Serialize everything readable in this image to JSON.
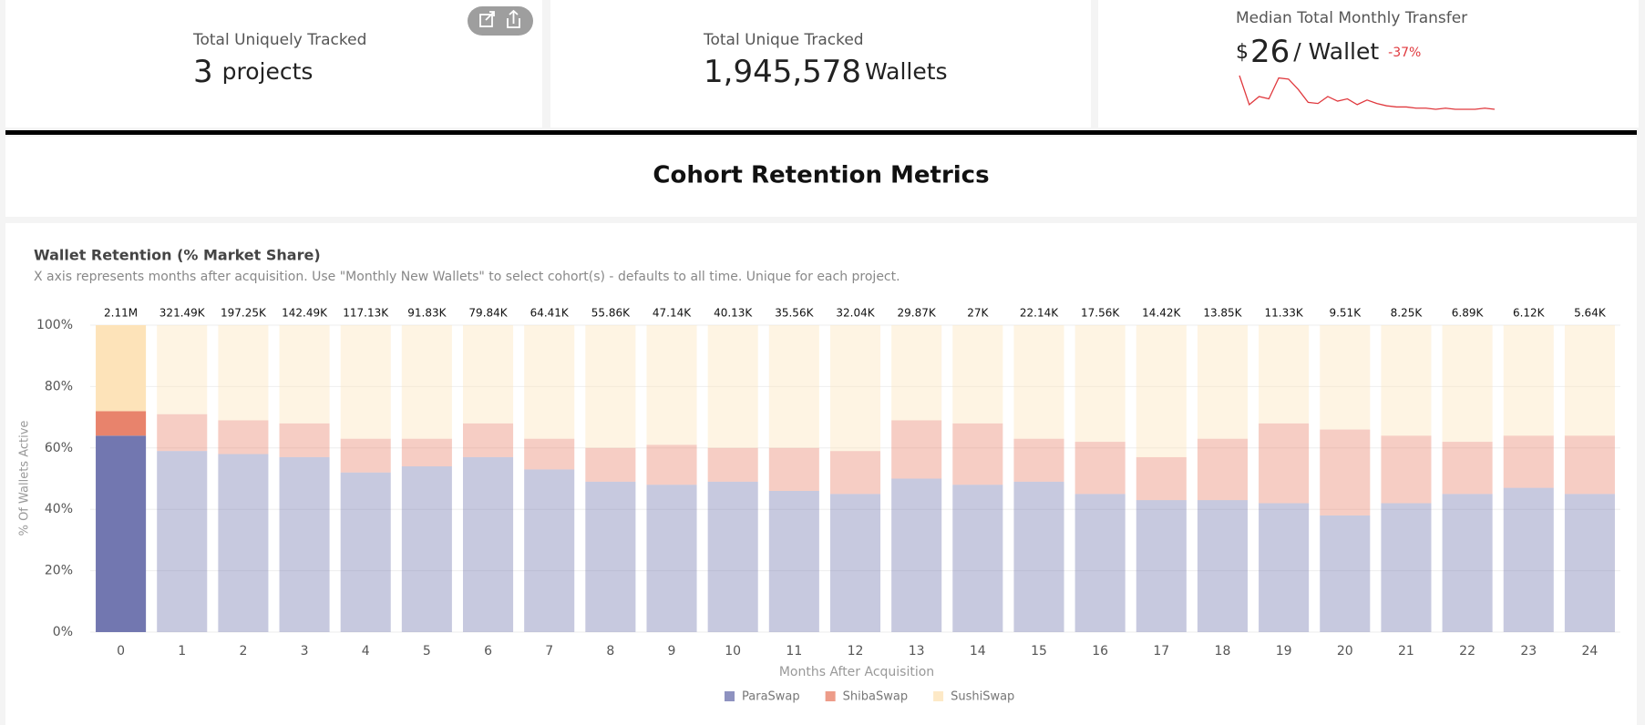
{
  "kpis": [
    {
      "label": "Total Uniquely Tracked",
      "value": "3",
      "unit": "projects"
    },
    {
      "label": "Total Unique Tracked",
      "value": "1,945,578",
      "unit": "Wallets"
    },
    {
      "label": "Median Total Monthly Transfer",
      "prefix": "$",
      "value": "26",
      "unit": "/ Wallet",
      "change": "-37%",
      "sparkline": {
        "color": "#e0393e",
        "values": [
          30,
          5,
          12,
          10,
          28,
          27,
          18,
          7,
          6,
          12,
          8,
          10,
          5,
          9,
          6,
          4,
          3,
          3,
          2,
          2,
          1,
          2,
          1,
          1,
          1,
          2,
          1
        ]
      }
    }
  ],
  "section_title": "Cohort Retention Metrics",
  "chart_data": {
    "type": "stacked_bar",
    "title": "Wallet Retention (% Market Share)",
    "subtitle": "X axis represents months after acquisition. Use \"Monthly New Wallets\" to select cohort(s) - defaults to all time. Unique for each project.",
    "x_label": "Months After Acquisition",
    "y_label": "% Of Wallets Active",
    "categories": [
      "0",
      "1",
      "2",
      "3",
      "4",
      "5",
      "6",
      "7",
      "8",
      "9",
      "10",
      "11",
      "12",
      "13",
      "14",
      "15",
      "16",
      "17",
      "18",
      "19",
      "20",
      "21",
      "22",
      "23",
      "24"
    ],
    "series": [
      {
        "name": "ParaSwap",
        "color": "#7277b0",
        "values": [
          64,
          59,
          58,
          57,
          52,
          54,
          57,
          53,
          49,
          48,
          49,
          46,
          45,
          50,
          48,
          49,
          45,
          43,
          43,
          42,
          38,
          42,
          45,
          47,
          45
        ]
      },
      {
        "name": "ShibaSwap",
        "color": "#e8836c",
        "values": [
          8,
          12,
          11,
          11,
          11,
          9,
          11,
          10,
          11,
          13,
          11,
          14,
          14,
          19,
          20,
          14,
          17,
          14,
          20,
          26,
          28,
          22,
          17,
          17,
          19
        ]
      },
      {
        "name": "SushiSwap",
        "color": "#fde3b9",
        "values": [
          28,
          29,
          31,
          32,
          37,
          37,
          32,
          37,
          40,
          39,
          40,
          40,
          41,
          31,
          32,
          37,
          38,
          43,
          37,
          32,
          34,
          36,
          38,
          36,
          36
        ]
      }
    ],
    "totals": {
      "values": [
        2110000,
        321490,
        197250,
        142490,
        117130,
        91830,
        79840,
        64410,
        55860,
        47140,
        40130,
        35560,
        32040,
        29870,
        27000,
        22140,
        17560,
        14420,
        13850,
        11330,
        9510,
        8250,
        6890,
        6120,
        5640
      ],
      "value_labels": [
        "2.11M",
        "321.49K",
        "197.25K",
        "142.49K",
        "117.13K",
        "91.83K",
        "79.84K",
        "64.41K",
        "55.86K",
        "47.14K",
        "40.13K",
        "35.56K",
        "32.04K",
        "29.87K",
        "27K",
        "22.14K",
        "17.56K",
        "14.42K",
        "13.85K",
        "11.33K",
        "9.51K",
        "8.25K",
        "6.89K",
        "6.12K",
        "5.64K"
      ]
    },
    "ylim": [
      0,
      100
    ],
    "yticks": [
      {
        "value": 0,
        "label": "0%"
      },
      {
        "value": 20,
        "label": "20%"
      },
      {
        "value": 40,
        "label": "40%"
      },
      {
        "value": 60,
        "label": "60%"
      },
      {
        "value": 80,
        "label": "80%"
      },
      {
        "value": 100,
        "label": "100%"
      }
    ],
    "grid": true,
    "legend": "bottom"
  }
}
